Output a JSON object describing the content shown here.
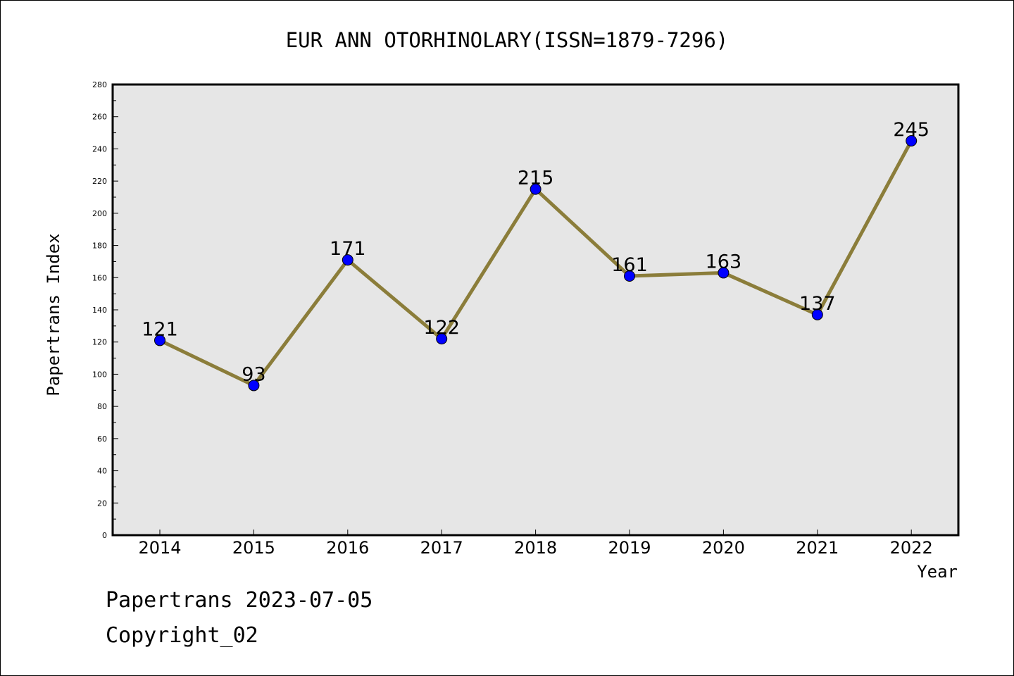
{
  "chart_data": {
    "type": "line",
    "title": "EUR ANN OTORHINOLARY(ISSN=1879-7296)",
    "xlabel": "Year",
    "ylabel": "Papertrans Index",
    "categories": [
      "2014",
      "2015",
      "2016",
      "2017",
      "2018",
      "2019",
      "2020",
      "2021",
      "2022"
    ],
    "series": [
      {
        "values": [
          121,
          93,
          171,
          122,
          215,
          161,
          163,
          137,
          245
        ]
      }
    ],
    "ylim": [
      0,
      280
    ],
    "yticks": [
      0,
      20,
      40,
      60,
      80,
      100,
      120,
      140,
      160,
      180,
      200,
      220,
      240,
      260,
      280
    ],
    "grid": false,
    "colors": {
      "line": "#8b7d3a",
      "marker": "#0000ff",
      "plot_background": "#e6e6e6"
    }
  },
  "footer": {
    "line1": "Papertrans 2023-07-05",
    "line2": "Copyright_02"
  }
}
